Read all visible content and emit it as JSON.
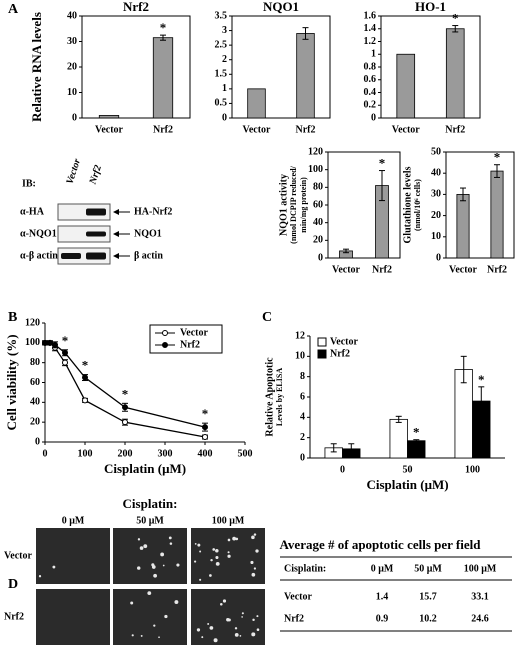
{
  "panels": [
    "A",
    "B",
    "C",
    "D"
  ],
  "chart_data": [
    {
      "type": "bar",
      "title": "Nrf2",
      "ylabel": "Relative RNA levels",
      "categories": [
        "Vector",
        "Nrf2"
      ],
      "values": [
        1,
        31.5
      ],
      "errors": [
        0,
        1
      ],
      "color": "#9a9a9a",
      "ylim": [
        0,
        40
      ],
      "yticks": [
        0,
        10,
        20,
        30,
        40
      ],
      "annotations": [
        {
          "text": "*",
          "x": "Nrf2"
        }
      ]
    },
    {
      "type": "bar",
      "title": "NQO1",
      "categories": [
        "Vector",
        "Nrf2"
      ],
      "values": [
        1,
        2.9
      ],
      "errors": [
        0,
        0.2
      ],
      "color": "#9a9a9a",
      "ylim": [
        0,
        3.5
      ],
      "yticks": [
        0,
        0.5,
        1,
        1.5,
        2,
        2.5,
        3,
        3.5
      ]
    },
    {
      "type": "bar",
      "title": "HO-1",
      "categories": [
        "Vector",
        "Nrf2"
      ],
      "values": [
        1,
        1.4
      ],
      "errors": [
        0,
        0.05
      ],
      "color": "#9a9a9a",
      "ylim": [
        0,
        1.6
      ],
      "yticks": [
        0,
        0.2,
        0.4,
        0.6,
        0.8,
        1,
        1.2,
        1.4,
        1.6
      ],
      "annotations": [
        {
          "text": "*",
          "x": "Nrf2"
        }
      ]
    },
    {
      "type": "bar",
      "ylabel": [
        "NQO1 activity",
        "(nmol DCPIP reduced/",
        "min/mg protein)"
      ],
      "categories": [
        "Vector",
        "Nrf2"
      ],
      "values": [
        8,
        82
      ],
      "errors": [
        2,
        17
      ],
      "color": "#9a9a9a",
      "ylim": [
        0,
        120
      ],
      "yticks": [
        0,
        20,
        40,
        60,
        80,
        100,
        120
      ],
      "annotations": [
        {
          "text": "*",
          "x": "Nrf2"
        }
      ]
    },
    {
      "type": "bar",
      "ylabel": [
        "Glutathione levels",
        "(nmol/10⁶ cells)"
      ],
      "categories": [
        "Vector",
        "Nrf2"
      ],
      "values": [
        30,
        41
      ],
      "errors": [
        3,
        3
      ],
      "color": "#9a9a9a",
      "ylim": [
        0,
        50
      ],
      "yticks": [
        0,
        10,
        20,
        30,
        40,
        50
      ],
      "annotations": [
        {
          "text": "*",
          "x": "Nrf2"
        }
      ]
    },
    {
      "type": "line",
      "ylabel": "Cell viability (%)",
      "xlabel": "Cisplatin (μM)",
      "x": [
        0,
        12.5,
        25,
        50,
        100,
        200,
        400
      ],
      "series": [
        {
          "name": "Vector",
          "color": "#000000",
          "marker_fill": "#ffffff",
          "values": [
            100,
            100,
            95,
            80,
            42,
            20,
            5
          ],
          "errors": [
            2,
            2,
            3,
            3,
            2,
            3,
            2
          ]
        },
        {
          "name": "Nrf2",
          "color": "#000000",
          "marker_fill": "#000000",
          "values": [
            100,
            100,
            98,
            90,
            65,
            35,
            15
          ],
          "errors": [
            2,
            2,
            3,
            3,
            3,
            4,
            4
          ]
        }
      ],
      "xlim": [
        0,
        500
      ],
      "xticks": [
        0,
        100,
        200,
        300,
        400,
        500
      ],
      "ylim": [
        0,
        120
      ],
      "yticks": [
        0,
        20,
        40,
        60,
        80,
        100,
        120
      ],
      "legend": "upper right",
      "annotations": [
        {
          "text": "*",
          "x": 50
        },
        {
          "text": "*",
          "x": 100
        },
        {
          "text": "*",
          "x": 200
        },
        {
          "text": "*",
          "x": 400
        }
      ]
    },
    {
      "type": "bar",
      "ylabel": [
        "Relative Apoptotic",
        "Levels by ELISA"
      ],
      "xlabel": "Cisplatin (μM)",
      "categories": [
        "0",
        "50",
        "100"
      ],
      "series": [
        {
          "name": "Vector",
          "color": "#ffffff",
          "values": [
            1.0,
            3.8,
            8.7
          ],
          "errors": [
            0.4,
            0.3,
            1.3
          ]
        },
        {
          "name": "Nrf2",
          "color": "#000000",
          "values": [
            0.9,
            1.7,
            5.6
          ],
          "errors": [
            0.5,
            0.1,
            1.4
          ]
        }
      ],
      "ylim": [
        0,
        12
      ],
      "yticks": [
        0,
        2,
        4,
        6,
        8,
        10,
        12
      ],
      "legend": "upper left",
      "annotations": [
        {
          "text": "*",
          "x": "50",
          "series": "Nrf2"
        },
        {
          "text": "*",
          "x": "100",
          "series": "Nrf2"
        }
      ]
    }
  ],
  "blot": {
    "label": "IB:",
    "lanes": [
      "Vector",
      "Nrf2"
    ],
    "rows": [
      {
        "antibody": "α-HA",
        "target": "HA-Nrf2"
      },
      {
        "antibody": "α-NQO1",
        "target": "NQO1"
      },
      {
        "antibody": "α-β actin",
        "target": "β actin"
      }
    ]
  },
  "micrographs": {
    "title": "Cisplatin:",
    "columns": [
      "0 μM",
      "50 μM",
      "100 μM"
    ],
    "rows": [
      "Vector",
      "Nrf2"
    ]
  },
  "table": {
    "title": "Average # of apoptotic cells per field",
    "header": [
      "Cisplatin:",
      "0 μM",
      "50 μM",
      "100 μM"
    ],
    "rows": [
      [
        "Vector",
        1.4,
        15.7,
        33.1
      ],
      [
        "Nrf2",
        0.9,
        10.2,
        24.6
      ]
    ]
  }
}
